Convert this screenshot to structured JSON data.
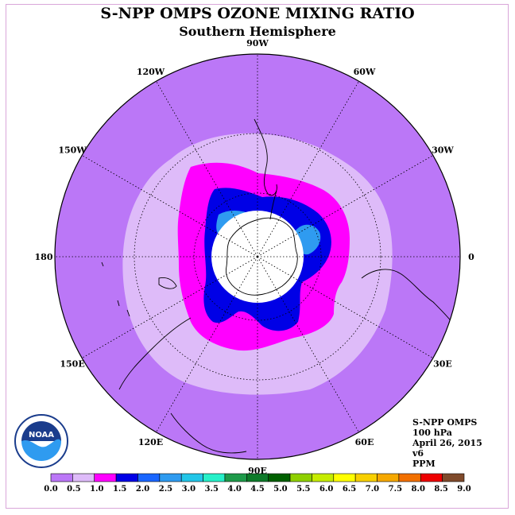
{
  "title": "S-NPP OMPS OZONE MIXING RATIO",
  "subtitle": "Southern Hemisphere",
  "longitude_labels": [
    {
      "text": "90W",
      "deg": -90
    },
    {
      "text": "60W",
      "deg": -60
    },
    {
      "text": "30W",
      "deg": -30
    },
    {
      "text": "0",
      "deg": 0
    },
    {
      "text": "30E",
      "deg": 30
    },
    {
      "text": "60E",
      "deg": 60
    },
    {
      "text": "90E",
      "deg": 90
    },
    {
      "text": "120E",
      "deg": 120
    },
    {
      "text": "150E",
      "deg": 150
    },
    {
      "text": "180",
      "deg": 180
    },
    {
      "text": "150W",
      "deg": -150
    },
    {
      "text": "120W",
      "deg": -120
    }
  ],
  "info": {
    "instrument": "S-NPP OMPS",
    "level": "100 hPa",
    "date": "April 26, 2015",
    "version": "v6",
    "units": "PPM"
  },
  "logo_text": "NOAA",
  "colorbar": {
    "ticks": [
      "0.0",
      "0.5",
      "1.0",
      "1.5",
      "2.0",
      "2.5",
      "3.0",
      "3.5",
      "4.0",
      "4.5",
      "5.0",
      "5.5",
      "6.0",
      "6.5",
      "7.0",
      "7.5",
      "8.0",
      "8.5",
      "9.0"
    ],
    "colors": [
      "#bb77f7",
      "#debbf9",
      "#ff00ff",
      "#0000e6",
      "#1a66ff",
      "#2f9bf0",
      "#22c6e8",
      "#26f0c9",
      "#1e9a4a",
      "#0e7a2a",
      "#006000",
      "#8fd000",
      "#c6ec00",
      "#ffff00",
      "#f8d000",
      "#f5a800",
      "#f27000",
      "#ee0000",
      "#7f4a2b"
    ]
  },
  "map_colors": {
    "bg": "#bb77f7",
    "level1": "#debbf9",
    "level2": "#ff00ff",
    "level3": "#0000e6",
    "level4": "#2f9bf0",
    "pole": "#ffffff"
  }
}
